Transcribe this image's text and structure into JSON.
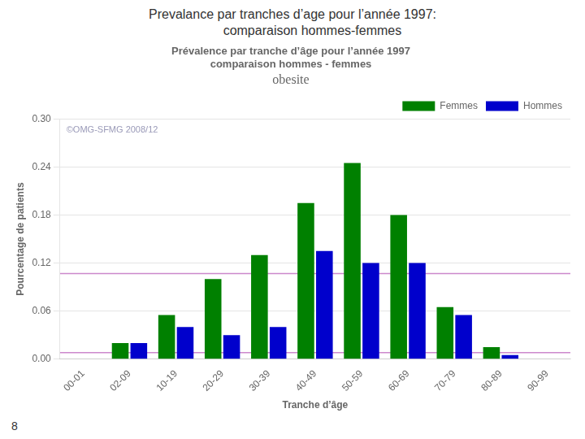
{
  "slide_title": "Prevalance par tranches d’age pour l’année 1997:\n           comparaison hommes-femmes",
  "page_number": "8",
  "chart_data": {
    "type": "bar",
    "title": [
      "Prévalence par tranche d’âge pour l’année 1997",
      "comparaison hommes - femmes"
    ],
    "subtitle": "obesite",
    "xlabel": "Tranche d’âge",
    "ylabel": "Pourcentage de patients",
    "categories": [
      "00-01",
      "02-09",
      "10-19",
      "20-29",
      "30-39",
      "40-49",
      "50-59",
      "60-69",
      "70-79",
      "80-89",
      "90-99"
    ],
    "series": [
      {
        "name": "Femmes",
        "color": "#008000",
        "values": [
          0.0,
          0.02,
          0.055,
          0.1,
          0.13,
          0.195,
          0.245,
          0.18,
          0.065,
          0.015,
          0.0
        ]
      },
      {
        "name": "Hommes",
        "color": "#0000CC",
        "values": [
          0.0,
          0.02,
          0.04,
          0.03,
          0.04,
          0.135,
          0.12,
          0.12,
          0.055,
          0.005,
          0.0
        ]
      }
    ],
    "ylim": [
      0.0,
      0.3
    ],
    "yticks": [
      {
        "value": 0.0,
        "label": "0.00"
      },
      0.06,
      0.12,
      0.18,
      0.24,
      {
        "value": 0.3,
        "label": "0.30"
      }
    ],
    "grid": true,
    "legend": "upper right",
    "reference_lines": [
      {
        "value": 0.107,
        "color": "#CC88CC"
      },
      {
        "value": 0.008,
        "color": "#CC88CC"
      }
    ],
    "annotations": [
      "©OMG-SFMG 2008/12"
    ]
  }
}
